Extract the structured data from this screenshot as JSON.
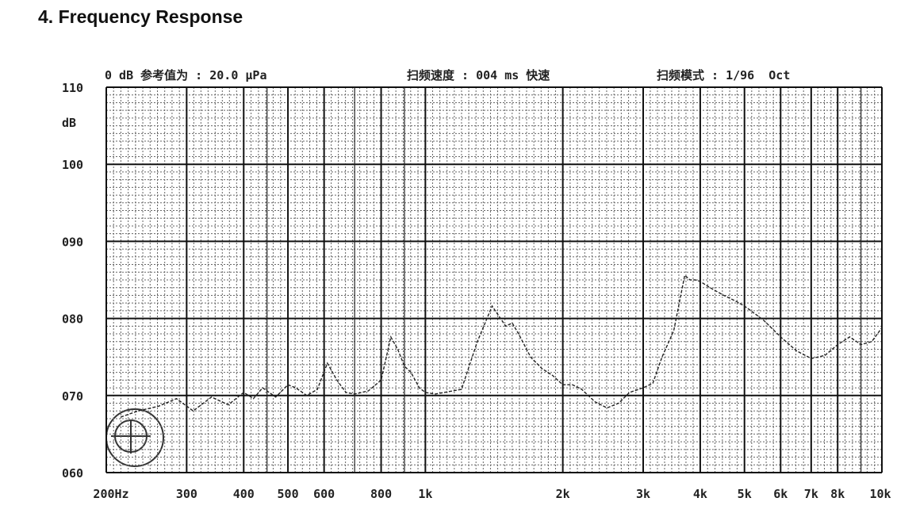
{
  "section_heading": "4.  Frequency Response",
  "chart_data": {
    "type": "line",
    "info_line": {
      "reference": "0 dB 参考值为 : 20.0 μPa",
      "sweep_speed": "扫频速度 : 004 ms 快速",
      "sweep_mode": "扫频模式 : 1/96  Oct"
    },
    "y_unit": "dB",
    "ylim": [
      60,
      110
    ],
    "y_ticks": [
      {
        "value": 110,
        "label": "110"
      },
      {
        "value": 100,
        "label": "100"
      },
      {
        "value": 90,
        "label": "090"
      },
      {
        "value": 80,
        "label": "080"
      },
      {
        "value": 70,
        "label": "070"
      },
      {
        "value": 60,
        "label": "060"
      }
    ],
    "xlim": [
      200,
      10000
    ],
    "x_scale": "log",
    "x_ticks": [
      {
        "value": 200,
        "label": "200Hz"
      },
      {
        "value": 300,
        "label": "300"
      },
      {
        "value": 400,
        "label": "400"
      },
      {
        "value": 500,
        "label": "500"
      },
      {
        "value": 600,
        "label": "600"
      },
      {
        "value": 800,
        "label": "800"
      },
      {
        "value": 1000,
        "label": "1k"
      },
      {
        "value": 2000,
        "label": "2k"
      },
      {
        "value": 3000,
        "label": "3k"
      },
      {
        "value": 4000,
        "label": "4k"
      },
      {
        "value": 5000,
        "label": "5k"
      },
      {
        "value": 6000,
        "label": "6k"
      },
      {
        "value": 7000,
        "label": "7k"
      },
      {
        "value": 8000,
        "label": "8k"
      },
      {
        "value": 10000,
        "label": "10k"
      }
    ],
    "grid": true,
    "series": [
      {
        "line_style": "dashed",
        "x": [
          215,
          235,
          260,
          285,
          310,
          340,
          370,
          400,
          420,
          440,
          470,
          500,
          520,
          550,
          580,
          610,
          640,
          670,
          700,
          750,
          800,
          840,
          870,
          900,
          930,
          970,
          1000,
          1050,
          1100,
          1200,
          1300,
          1400,
          1500,
          1550,
          1600,
          1700,
          1800,
          1900,
          2000,
          2100,
          2200,
          2350,
          2500,
          2650,
          2800,
          3000,
          3150,
          3300,
          3500,
          3700,
          3800,
          3900,
          4000,
          4200,
          4500,
          4800,
          5000,
          5500,
          6000,
          6500,
          7000,
          7500,
          8000,
          8500,
          9000,
          9500,
          10000
        ],
        "y": [
          67.2,
          68.0,
          68.6,
          69.6,
          68.0,
          69.8,
          68.8,
          70.4,
          69.6,
          71.0,
          69.8,
          71.4,
          71.0,
          70.0,
          70.8,
          74.2,
          72.0,
          70.4,
          70.2,
          70.6,
          72.0,
          77.6,
          76.0,
          73.8,
          73.0,
          71.0,
          70.4,
          70.2,
          70.4,
          70.8,
          77.0,
          81.6,
          79.0,
          79.4,
          78.0,
          75.0,
          73.5,
          72.6,
          71.4,
          71.4,
          70.8,
          69.2,
          68.4,
          69.0,
          70.4,
          71.0,
          71.6,
          75.0,
          78.4,
          85.6,
          85.0,
          85.0,
          84.8,
          84.0,
          83.0,
          82.2,
          81.6,
          79.8,
          77.6,
          75.8,
          74.8,
          75.2,
          76.6,
          77.6,
          76.6,
          77.0,
          78.8
        ]
      }
    ]
  }
}
